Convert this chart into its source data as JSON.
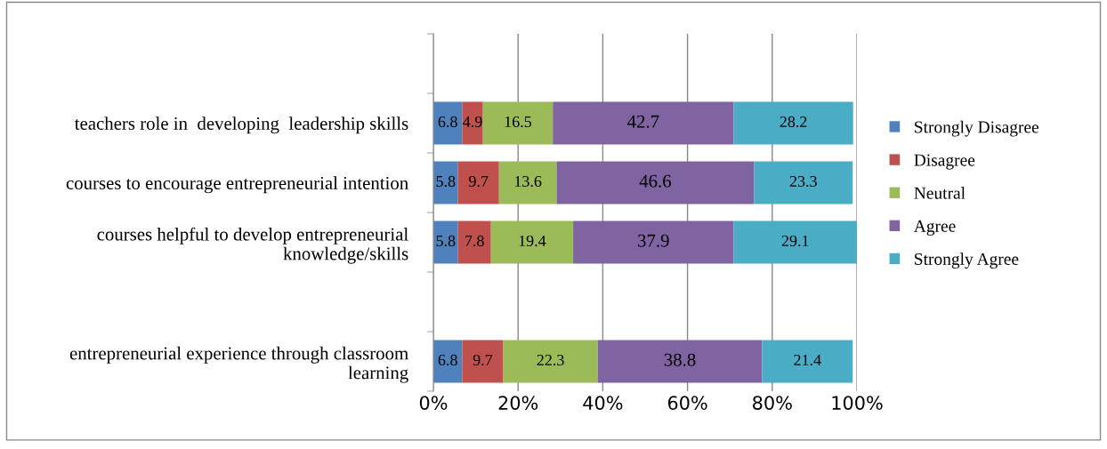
{
  "chart_data": {
    "type": "bar",
    "orientation": "horizontal",
    "stacked": true,
    "categories": [
      null,
      "teachers role in  developing  leadership skills",
      "courses to encourage entrepreneurial intention",
      "courses helpful to develop entrepreneurial\nknowledge/skills",
      null,
      "entrepreneurial experience through classroom\nlearning"
    ],
    "series": [
      {
        "name": "Strongly Disagree",
        "color": "#4f81bd",
        "values": [
          null,
          6.8,
          5.8,
          5.8,
          null,
          6.8
        ]
      },
      {
        "name": "Disagree",
        "color": "#c0504d",
        "values": [
          null,
          4.9,
          9.7,
          7.8,
          null,
          9.7
        ]
      },
      {
        "name": "Neutral",
        "color": "#9bbb59",
        "values": [
          null,
          16.5,
          13.6,
          19.4,
          null,
          22.3
        ]
      },
      {
        "name": "Agree",
        "color": "#8064a2",
        "values": [
          null,
          42.7,
          46.6,
          37.9,
          null,
          38.8
        ]
      },
      {
        "name": "Strongly Agree",
        "color": "#4bacc6",
        "values": [
          null,
          28.2,
          23.3,
          29.1,
          null,
          21.4
        ]
      }
    ],
    "xlim": [
      0,
      100
    ],
    "xticks": [
      {
        "value": 0,
        "label": "0%"
      },
      {
        "value": 20,
        "label": "20%"
      },
      {
        "value": 40,
        "label": "40%"
      },
      {
        "value": 60,
        "label": "60%"
      },
      {
        "value": 80,
        "label": "80%"
      },
      {
        "value": 100,
        "label": "100%"
      }
    ],
    "grid": "x",
    "legend": "right",
    "data_labels": true
  }
}
